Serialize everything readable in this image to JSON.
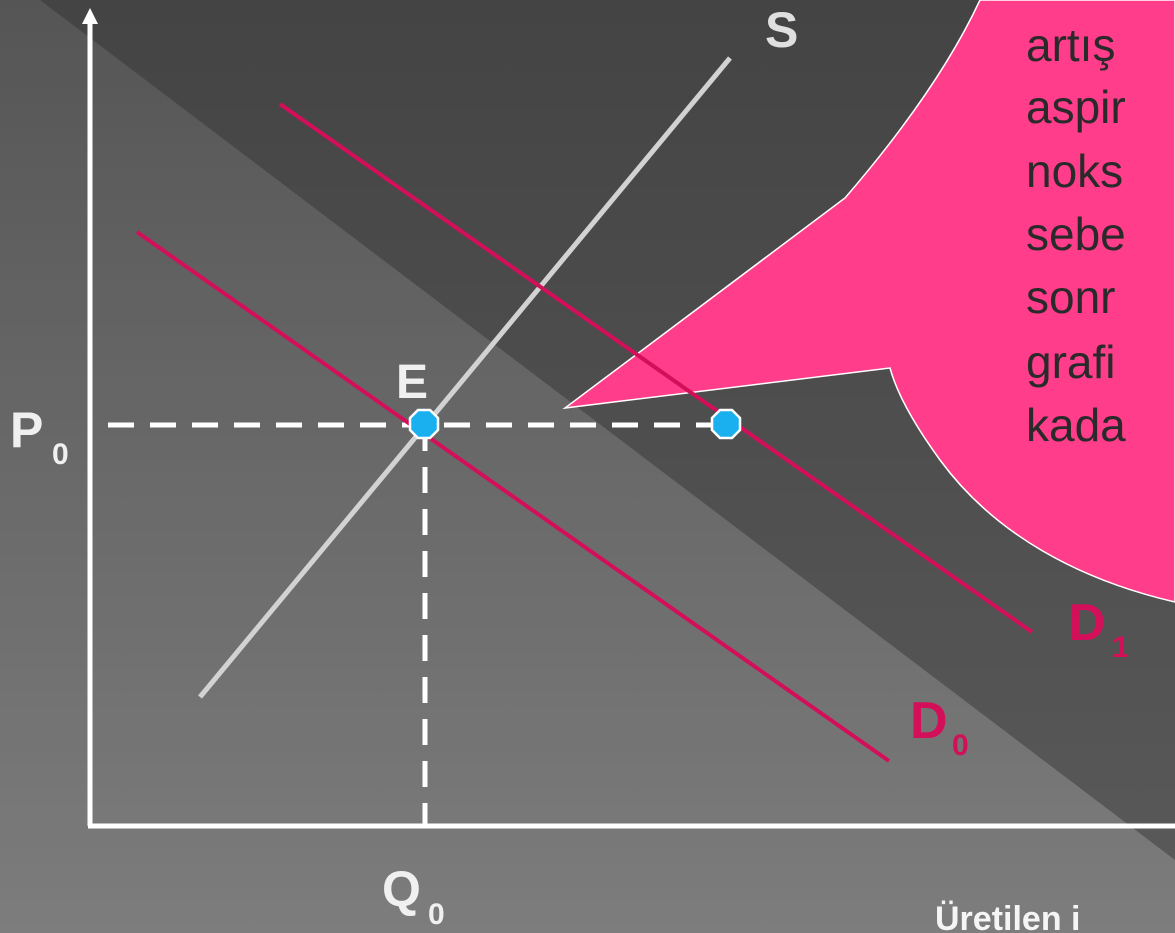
{
  "colors": {
    "demand_line": "#d40f5a",
    "supply_line": "#d2d2d2",
    "axis": "#ffffff",
    "point_fill": "#1ab0f0",
    "bubble": "#ff3d8b",
    "label_light": "#eeeeee",
    "label_demand": "#d40f5a"
  },
  "labels": {
    "supply": "S",
    "equilibrium": "E",
    "price": "P",
    "price_sub": "0",
    "quantity": "Q",
    "quantity_sub": "0",
    "demand0": "D",
    "demand0_sub": "0",
    "demand1": "D",
    "demand1_sub": "1",
    "x_axis_partial": "Üretilen i"
  },
  "callout": {
    "lines": [
      "artış",
      "aspir",
      "noks",
      "sebe",
      "sonr",
      "grafi",
      "kada"
    ]
  }
}
